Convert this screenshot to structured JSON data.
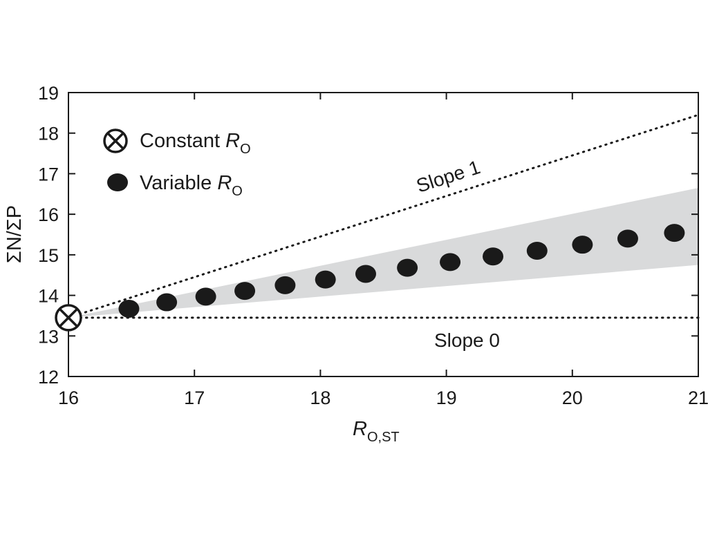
{
  "chart_data": {
    "type": "scatter",
    "xlabel": {
      "main": "R",
      "sub": "O,ST"
    },
    "ylabel": "ΣN/ΣP",
    "xlim": [
      16,
      21
    ],
    "ylim": [
      12,
      19
    ],
    "x_ticks": [
      16,
      17,
      18,
      19,
      20,
      21
    ],
    "y_ticks": [
      12,
      13,
      14,
      15,
      16,
      17,
      18,
      19
    ],
    "grid": false,
    "legend_position": "top-left",
    "legend": [
      {
        "marker": "circle-cross",
        "label": "Constant ",
        "label_italic": "R",
        "label_sub": "O"
      },
      {
        "marker": "filled-circle",
        "label": "Variable ",
        "label_italic": "R",
        "label_sub": "O"
      }
    ],
    "series": [
      {
        "name": "Constant RO",
        "marker": "circle-cross",
        "points": [
          {
            "x": 16.0,
            "y": 13.45
          }
        ]
      },
      {
        "name": "Variable RO",
        "marker": "filled-circle",
        "points": [
          {
            "x": 16.48,
            "y": 13.67
          },
          {
            "x": 16.78,
            "y": 13.83
          },
          {
            "x": 17.09,
            "y": 13.97
          },
          {
            "x": 17.4,
            "y": 14.11
          },
          {
            "x": 17.72,
            "y": 14.25
          },
          {
            "x": 18.04,
            "y": 14.39
          },
          {
            "x": 18.36,
            "y": 14.53
          },
          {
            "x": 18.69,
            "y": 14.68
          },
          {
            "x": 19.03,
            "y": 14.82
          },
          {
            "x": 19.37,
            "y": 14.96
          },
          {
            "x": 19.72,
            "y": 15.1
          },
          {
            "x": 20.08,
            "y": 15.25
          },
          {
            "x": 20.44,
            "y": 15.4
          },
          {
            "x": 20.81,
            "y": 15.54
          }
        ]
      }
    ],
    "band": {
      "start": {
        "x": 16.0,
        "y": 13.45
      },
      "end_x": 21.0,
      "end_upper": 16.65,
      "end_lower": 14.75
    },
    "reference_lines": [
      {
        "label": "Slope 1",
        "slope": 1,
        "from": {
          "x": 16.0,
          "y": 13.45
        },
        "to": {
          "x": 21.0,
          "y": 18.45
        }
      },
      {
        "label": "Slope 0",
        "slope": 0,
        "from": {
          "x": 16.0,
          "y": 13.45
        },
        "to": {
          "x": 21.0,
          "y": 13.45
        }
      }
    ],
    "colors": {
      "markers": "#1a1a1a",
      "band": "#d9dadb",
      "axis": "#1a1a1a",
      "background": "#ffffff"
    }
  }
}
